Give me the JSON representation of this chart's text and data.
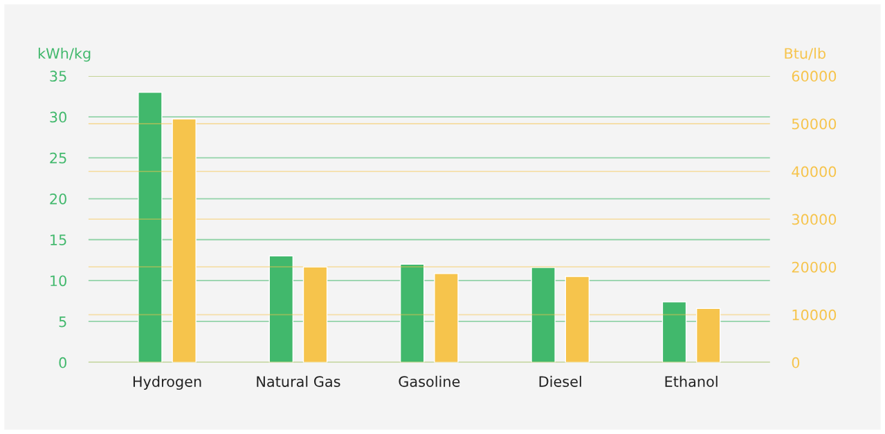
{
  "chart_data": {
    "type": "bar",
    "categories": [
      "Hydrogen",
      "Natural Gas",
      "Gasoline",
      "Diesel",
      "Ethanol"
    ],
    "series": [
      {
        "color": "#41b86c",
        "values": [
          33,
          13,
          12,
          11.6,
          7.4
        ]
      },
      {
        "color": "#f6c44c",
        "axis": "y2",
        "values": [
          51000,
          20000,
          18600,
          18000,
          11300
        ]
      }
    ],
    "ylabel": "kWh/kg",
    "y2label": "Btu/lb",
    "ylim": [
      0,
      35
    ],
    "yticks": [
      0,
      5,
      10,
      15,
      20,
      25,
      30,
      35
    ],
    "y2lim": [
      0,
      60000
    ],
    "y2ticks": [
      0,
      10000,
      20000,
      30000,
      40000,
      50000,
      60000
    ],
    "grid": "y",
    "legend": false
  }
}
